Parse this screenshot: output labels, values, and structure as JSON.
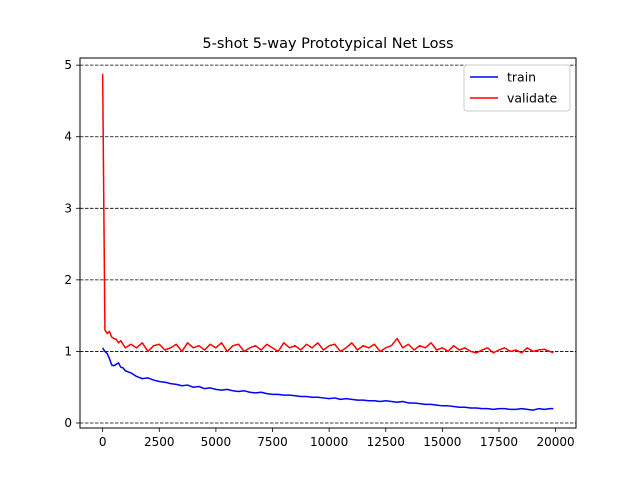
{
  "chart_data": {
    "type": "line",
    "title": "5-shot 5-way Prototypical Net Loss",
    "xlabel": "",
    "ylabel": "",
    "xlim": [
      -1000,
      20900
    ],
    "ylim": [
      -0.07,
      5.1
    ],
    "xticks": [
      0,
      2500,
      5000,
      7500,
      10000,
      12500,
      15000,
      17500,
      20000
    ],
    "yticks": [
      0,
      1,
      2,
      3,
      4,
      5
    ],
    "grid": {
      "axis": "y",
      "style": "dashed",
      "color": "#000000"
    },
    "legend": {
      "position": "top-right"
    },
    "series": [
      {
        "name": "train",
        "color": "#0000ff",
        "x": [
          0,
          100,
          200,
          300,
          400,
          500,
          600,
          700,
          800,
          900,
          1000,
          1250,
          1500,
          1750,
          2000,
          2250,
          2500,
          2750,
          3000,
          3250,
          3500,
          3750,
          4000,
          4250,
          4500,
          4750,
          5000,
          5250,
          5500,
          5750,
          6000,
          6250,
          6500,
          6750,
          7000,
          7250,
          7500,
          7750,
          8000,
          8250,
          8500,
          8750,
          9000,
          9250,
          9500,
          9750,
          10000,
          10250,
          10500,
          10750,
          11000,
          11250,
          11500,
          11750,
          12000,
          12250,
          12500,
          12750,
          13000,
          13250,
          13500,
          13750,
          14000,
          14250,
          14500,
          14750,
          15000,
          15250,
          15500,
          15750,
          16000,
          16250,
          16500,
          16750,
          17000,
          17250,
          17500,
          17750,
          18000,
          18250,
          18500,
          18750,
          19000,
          19250,
          19500,
          19750,
          19900
        ],
        "values": [
          1.05,
          1.0,
          0.97,
          0.9,
          0.81,
          0.8,
          0.82,
          0.84,
          0.78,
          0.77,
          0.73,
          0.7,
          0.65,
          0.62,
          0.63,
          0.6,
          0.58,
          0.57,
          0.55,
          0.54,
          0.52,
          0.53,
          0.5,
          0.51,
          0.48,
          0.49,
          0.47,
          0.46,
          0.47,
          0.45,
          0.44,
          0.45,
          0.43,
          0.42,
          0.43,
          0.41,
          0.4,
          0.4,
          0.39,
          0.39,
          0.38,
          0.37,
          0.37,
          0.36,
          0.36,
          0.35,
          0.34,
          0.35,
          0.33,
          0.34,
          0.33,
          0.32,
          0.32,
          0.31,
          0.31,
          0.3,
          0.31,
          0.3,
          0.29,
          0.3,
          0.28,
          0.28,
          0.27,
          0.26,
          0.26,
          0.25,
          0.24,
          0.24,
          0.23,
          0.22,
          0.22,
          0.21,
          0.21,
          0.2,
          0.2,
          0.19,
          0.2,
          0.2,
          0.19,
          0.19,
          0.2,
          0.19,
          0.18,
          0.2,
          0.19,
          0.2,
          0.2
        ]
      },
      {
        "name": "validate",
        "color": "#ff0000",
        "x": [
          0,
          100,
          200,
          300,
          400,
          500,
          600,
          700,
          800,
          900,
          1000,
          1250,
          1500,
          1750,
          2000,
          2250,
          2500,
          2750,
          3000,
          3250,
          3500,
          3750,
          4000,
          4250,
          4500,
          4750,
          5000,
          5250,
          5500,
          5750,
          6000,
          6250,
          6500,
          6750,
          7000,
          7250,
          7500,
          7750,
          8000,
          8250,
          8500,
          8750,
          9000,
          9250,
          9500,
          9750,
          10000,
          10250,
          10500,
          10750,
          11000,
          11250,
          11500,
          11750,
          12000,
          12250,
          12500,
          12750,
          13000,
          13250,
          13500,
          13750,
          14000,
          14250,
          14500,
          14750,
          15000,
          15250,
          15500,
          15750,
          16000,
          16250,
          16500,
          16750,
          17000,
          17250,
          17500,
          17750,
          18000,
          18250,
          18500,
          18750,
          19000,
          19250,
          19500,
          19750,
          19900
        ],
        "values": [
          4.88,
          1.3,
          1.25,
          1.28,
          1.2,
          1.18,
          1.17,
          1.12,
          1.15,
          1.1,
          1.05,
          1.1,
          1.05,
          1.12,
          1.0,
          1.08,
          1.1,
          1.02,
          1.05,
          1.1,
          1.0,
          1.12,
          1.05,
          1.08,
          1.02,
          1.1,
          1.05,
          1.12,
          1.0,
          1.08,
          1.1,
          1.0,
          1.05,
          1.08,
          1.02,
          1.1,
          1.05,
          1.0,
          1.12,
          1.05,
          1.08,
          1.02,
          1.1,
          1.05,
          1.12,
          1.02,
          1.08,
          1.1,
          1.0,
          1.05,
          1.12,
          1.02,
          1.08,
          1.05,
          1.1,
          1.0,
          1.05,
          1.08,
          1.18,
          1.05,
          1.1,
          1.02,
          1.08,
          1.05,
          1.12,
          1.02,
          1.05,
          1.0,
          1.08,
          1.02,
          1.05,
          1.0,
          0.98,
          1.02,
          1.05,
          0.98,
          1.02,
          1.05,
          1.0,
          1.02,
          0.98,
          1.05,
          1.0,
          1.02,
          1.03,
          1.0,
          0.98
        ]
      }
    ]
  }
}
